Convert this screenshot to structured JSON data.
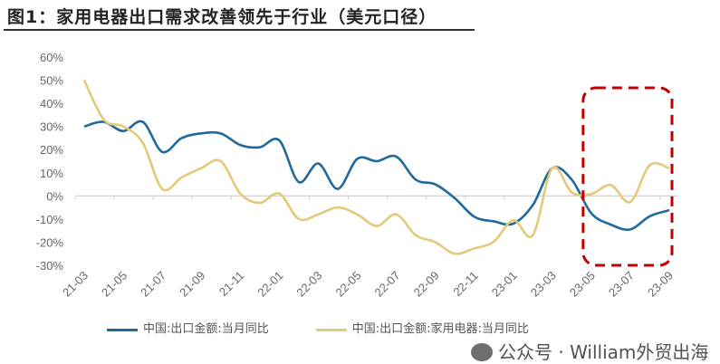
{
  "title": "图1：家用电器出口需求改善领先于行业（美元口径）",
  "watermark": "公众号 · William外贸出海",
  "chart_data": {
    "type": "line",
    "title": "图1：家用电器出口需求改善领先于行业（美元口径）",
    "xlabel": "",
    "ylabel": "",
    "ylim": [
      -30,
      60
    ],
    "yticks": [
      "60%",
      "50%",
      "40%",
      "30%",
      "20%",
      "10%",
      "0%",
      "-10%",
      "-20%",
      "-30%"
    ],
    "x": [
      "21-03",
      "21-04",
      "21-05",
      "21-06",
      "21-07",
      "21-08",
      "21-09",
      "21-10",
      "21-11",
      "21-12",
      "22-01",
      "22-02",
      "22-03",
      "22-04",
      "22-05",
      "22-06",
      "22-07",
      "22-08",
      "22-09",
      "22-10",
      "22-11",
      "22-12",
      "23-01",
      "23-02",
      "23-03",
      "23-04",
      "23-05",
      "23-06",
      "23-07",
      "23-08",
      "23-09"
    ],
    "xtick_labels": [
      "21-03",
      "21-05",
      "21-07",
      "21-09",
      "21-11",
      "22-01",
      "22-03",
      "22-05",
      "22-07",
      "22-09",
      "22-11",
      "23-01",
      "23-03",
      "23-05",
      "23-07",
      "23-09"
    ],
    "legend_position": "bottom",
    "grid": false,
    "series": [
      {
        "name": "中国:出口金额:当月同比",
        "color": "#1f6a9a",
        "values": [
          30,
          32,
          28,
          32,
          19,
          25,
          27,
          27,
          22,
          21,
          24,
          6,
          14,
          3,
          16,
          15,
          17,
          7,
          5,
          -1,
          -9,
          -11,
          -12,
          -4,
          12,
          7,
          -7.5,
          -12.4,
          -14.5,
          -8.8,
          -6.2
        ]
      },
      {
        "name": "中国:出口金额:家用电器:当月同比",
        "color": "#e3c97a",
        "values": [
          50,
          33,
          30,
          23,
          3,
          8,
          12,
          15,
          1,
          -3,
          1,
          -10,
          -8,
          -5,
          -8,
          -13,
          -8,
          -17,
          -20,
          -25,
          -22.7,
          -19.8,
          -10.5,
          -17,
          12,
          1.5,
          0.8,
          4.7,
          -2.6,
          13.3,
          11.9
        ]
      }
    ],
    "annotation": {
      "type": "dashed-box",
      "color": "#c00000",
      "x_range": [
        "23-05",
        "23-09"
      ]
    }
  }
}
